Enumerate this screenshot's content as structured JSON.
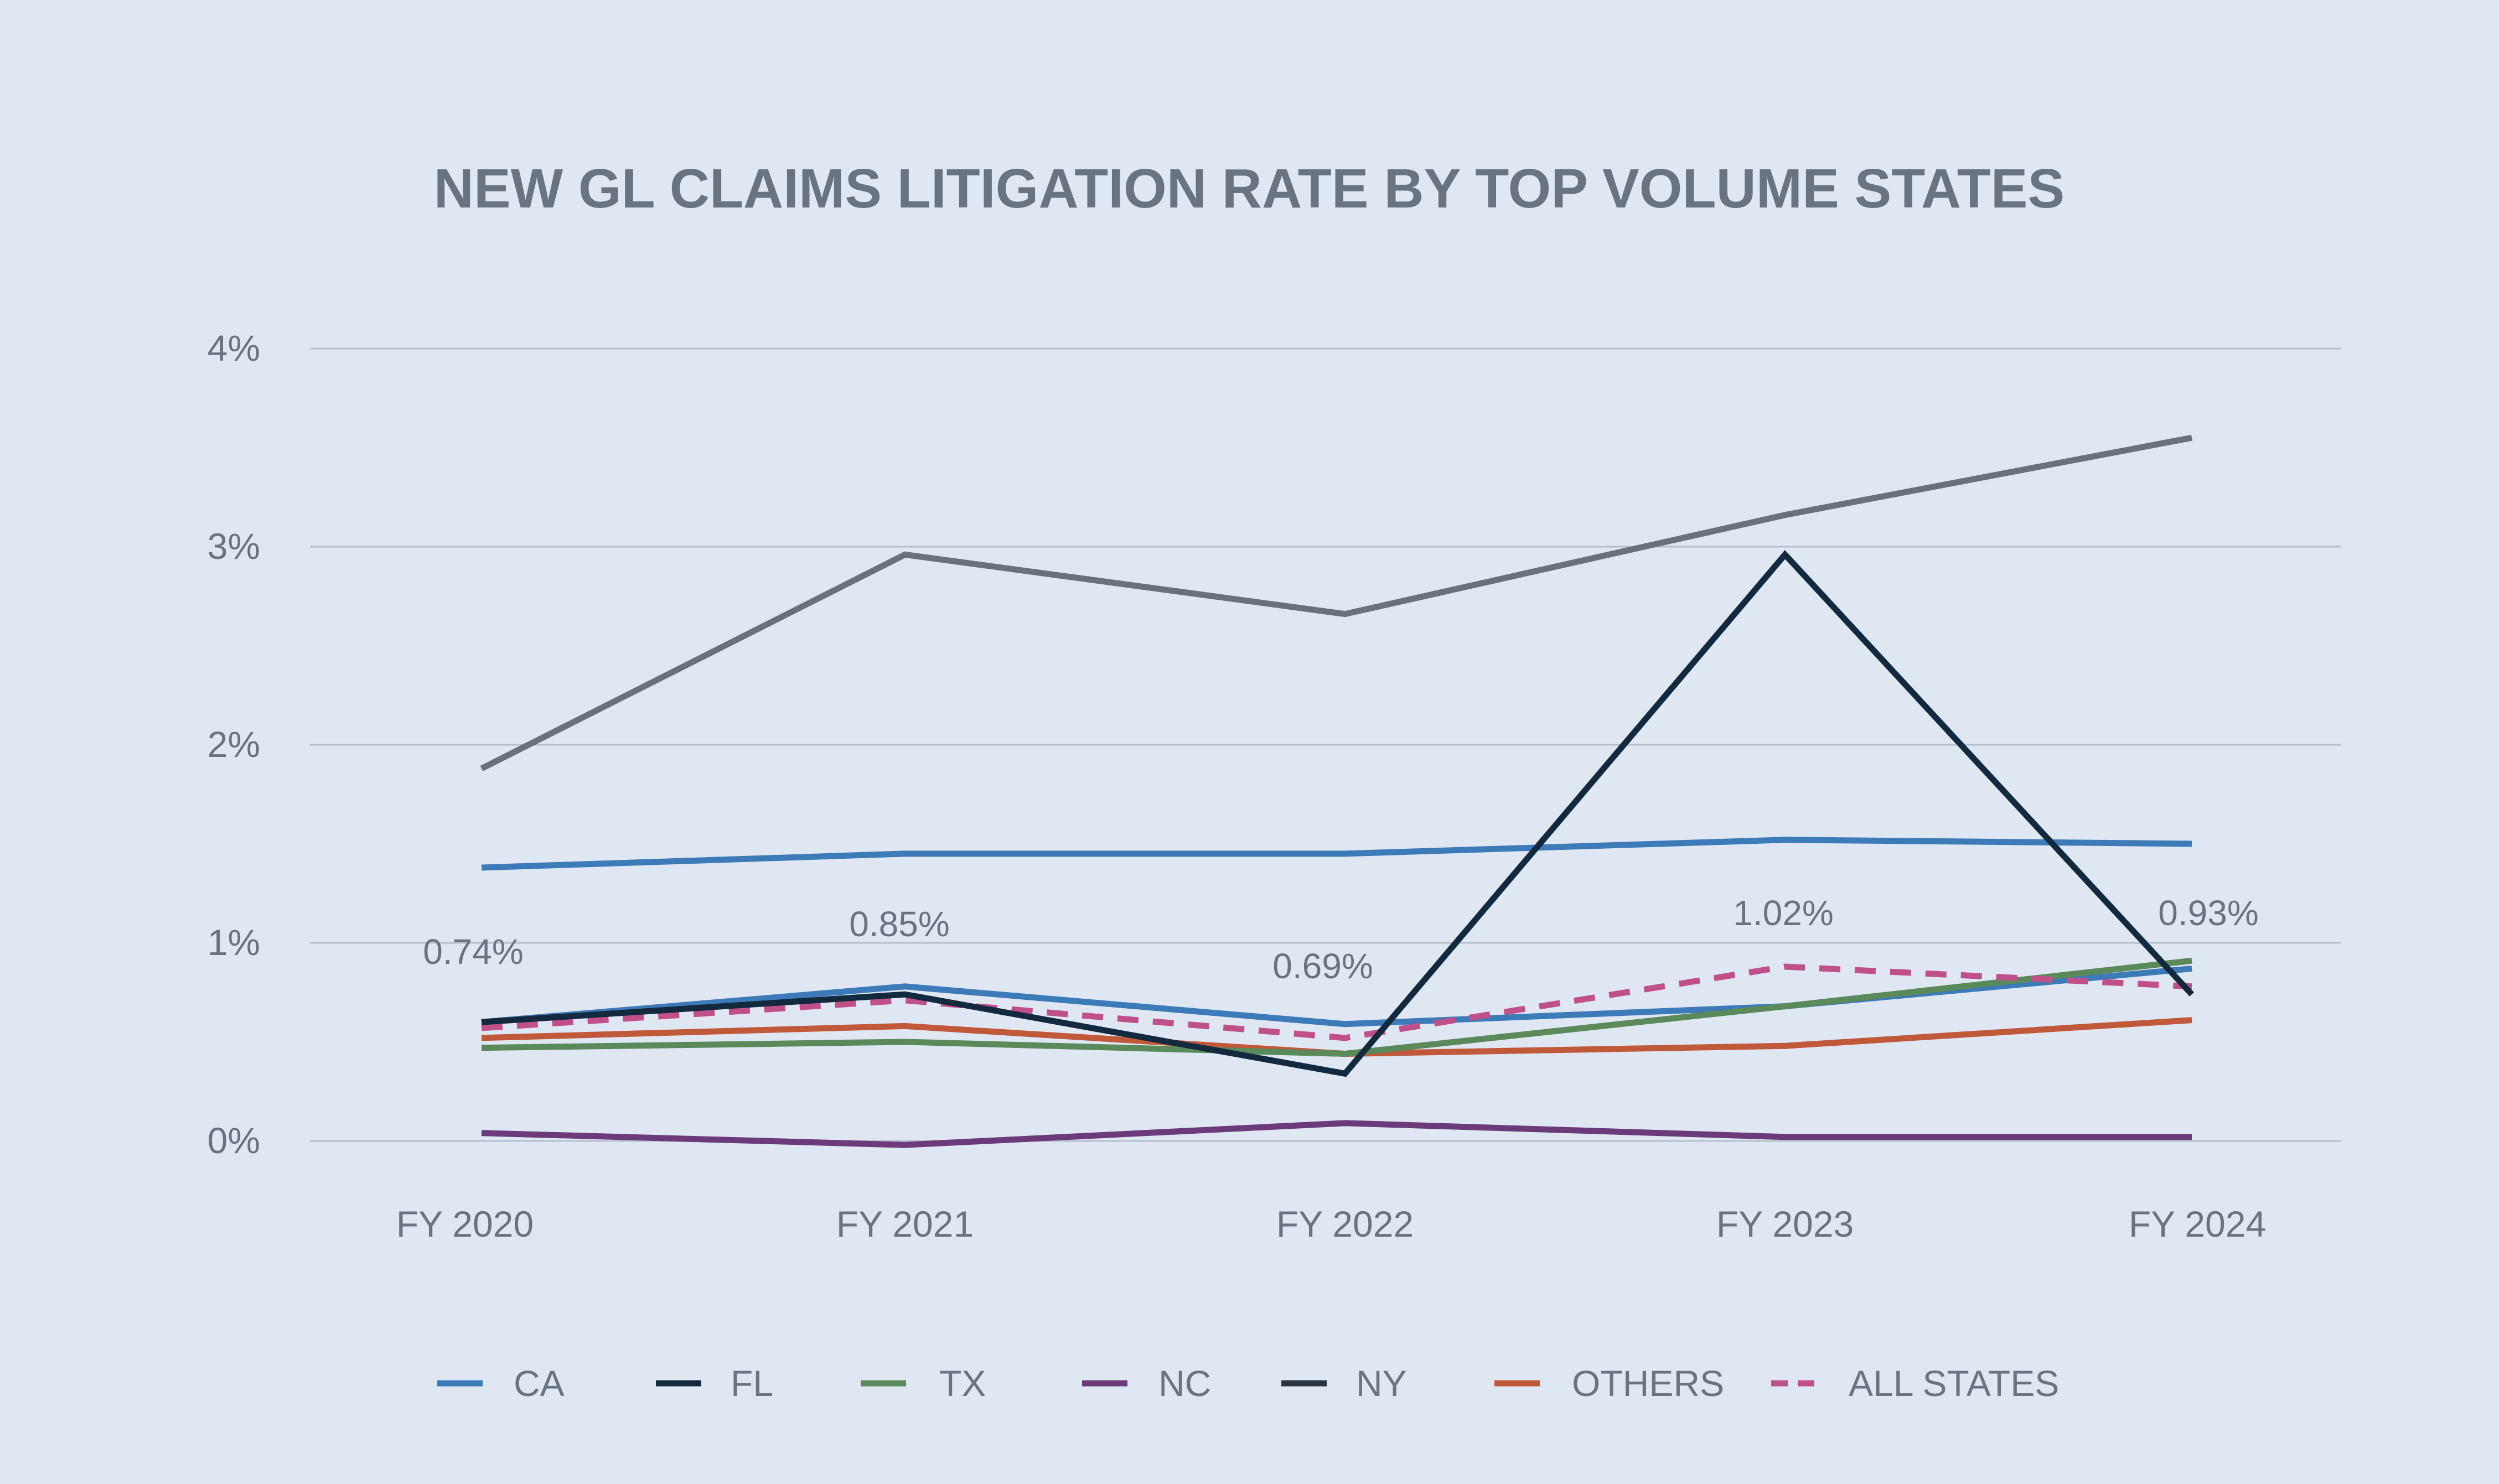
{
  "chart_data": {
    "type": "line",
    "title": "NEW GL CLAIMS LITIGATION RATE BY TOP VOLUME STATES",
    "categories": [
      "FY 2020",
      "FY 2021",
      "FY 2022",
      "FY 2023",
      "FY 2024"
    ],
    "y_ticks": [
      "0%",
      "1%",
      "2%",
      "3%",
      "4%"
    ],
    "ylim": [
      0,
      4
    ],
    "grid": true,
    "legend_position": "bottom",
    "series": [
      {
        "name": "NY",
        "color": "#6a717c",
        "dashed": false,
        "values": [
          1.88,
          2.96,
          2.66,
          3.16,
          3.55
        ]
      },
      {
        "name": "CA",
        "color": "#3d7ab8",
        "dashed": false,
        "values": [
          1.38,
          1.45,
          1.45,
          1.52,
          1.5
        ]
      },
      {
        "name": "FL",
        "color": "#13293d",
        "dashed": false,
        "values": [
          0.6,
          0.74,
          0.34,
          2.96,
          0.74
        ]
      },
      {
        "name": "TX",
        "color": "#5a8a5a",
        "dashed": false,
        "values": [
          0.47,
          0.5,
          0.44,
          0.68,
          0.91
        ]
      },
      {
        "name": "NC",
        "color": "#6a3a7a",
        "dashed": false,
        "values": [
          0.04,
          -0.02,
          0.09,
          0.02,
          0.02
        ]
      },
      {
        "name": "OTHERS",
        "color": "#c0583a",
        "dashed": false,
        "values": [
          0.52,
          0.58,
          0.44,
          0.48,
          0.61
        ]
      },
      {
        "name": "ALL STATES",
        "color": "#c0508a",
        "dashed": true,
        "values": [
          0.57,
          0.71,
          0.52,
          0.88,
          0.78
        ]
      }
    ],
    "extra_series_top_label": [
      {
        "ref": "FY 2020 CA-lower-line",
        "values": [
          0.6,
          0.78,
          0.59,
          0.68,
          0.87
        ]
      }
    ],
    "data_labels": [
      "0.74%",
      "0.85%",
      "0.69%",
      "1.02%",
      "0.93%"
    ],
    "legend": [
      {
        "name": "CA",
        "color": "#3d7ab8",
        "dashed": false
      },
      {
        "name": "FL",
        "color": "#13293d",
        "dashed": false
      },
      {
        "name": "TX",
        "color": "#5a8a5a",
        "dashed": false
      },
      {
        "name": "NC",
        "color": "#6a3a7a",
        "dashed": false
      },
      {
        "name": "NY",
        "color": "#2a3340",
        "dashed": false
      },
      {
        "name": "OTHERS",
        "color": "#c0583a",
        "dashed": false
      },
      {
        "name": "ALL STATES",
        "color": "#c0508a",
        "dashed": true
      }
    ]
  }
}
